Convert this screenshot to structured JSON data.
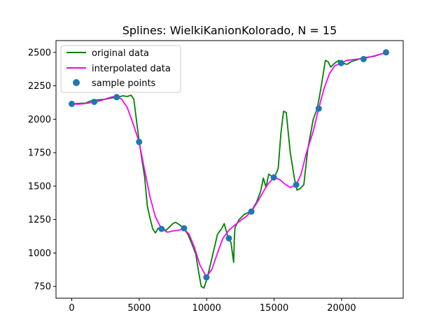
{
  "chart_data": {
    "type": "line",
    "title": "Splines: WielkiKanionKolorado, N = 15",
    "xlabel": "",
    "ylabel": "",
    "xlim": [
      -1170,
      24570
    ],
    "ylim": [
      662,
      2588
    ],
    "grid": false,
    "legend_position": "top-left",
    "x_ticks": [
      0,
      5000,
      10000,
      15000,
      20000
    ],
    "y_ticks": [
      750,
      1000,
      1250,
      1500,
      1750,
      2000,
      2250,
      2500
    ],
    "series": [
      {
        "name": "original data",
        "kind": "line",
        "color": "#008000",
        "x": [
          0,
          500,
          1000,
          1500,
          2000,
          2500,
          3000,
          3400,
          3800,
          4100,
          4400,
          4600,
          4800,
          5000,
          5200,
          5400,
          5600,
          5800,
          6000,
          6200,
          6400,
          6700,
          7000,
          7300,
          7500,
          7700,
          8000,
          8300,
          8600,
          8900,
          9200,
          9400,
          9600,
          9800,
          10000,
          10200,
          10500,
          10800,
          11100,
          11300,
          11600,
          11800,
          12000,
          12050,
          12100,
          12400,
          12800,
          13300,
          13700,
          14000,
          14200,
          14400,
          14600,
          15000,
          15300,
          15500,
          15700,
          15900,
          16200,
          16500,
          16700,
          16900,
          17200,
          17500,
          17900,
          18200,
          18500,
          18800,
          19000,
          19200,
          19500,
          19800,
          20100,
          20400,
          20700,
          21000,
          21300,
          21600,
          22000,
          22400,
          22700,
          23000,
          23300
        ],
        "y": [
          2115,
          2118,
          2120,
          2140,
          2145,
          2150,
          2160,
          2165,
          2175,
          2170,
          2180,
          2150,
          1990,
          1830,
          1700,
          1570,
          1350,
          1260,
          1180,
          1150,
          1185,
          1175,
          1170,
          1200,
          1220,
          1230,
          1210,
          1185,
          1140,
          1070,
          990,
          860,
          750,
          738,
          800,
          880,
          1010,
          1140,
          1180,
          1220,
          1110,
          1080,
          930,
          1100,
          1190,
          1250,
          1290,
          1310,
          1380,
          1460,
          1560,
          1490,
          1590,
          1560,
          1630,
          1890,
          2060,
          2050,
          1750,
          1560,
          1470,
          1480,
          1510,
          1780,
          2000,
          2080,
          2250,
          2440,
          2430,
          2390,
          2420,
          2440,
          2420,
          2410,
          2430,
          2440,
          2450,
          2460,
          2465,
          2470,
          2480,
          2490,
          2500
        ]
      },
      {
        "name": "interpolated data",
        "kind": "line",
        "color": "#ff00ff",
        "x": [
          0,
          400,
          800,
          1200,
          1664,
          2100,
          2600,
          3000,
          3328,
          3700,
          4100,
          4500,
          4992,
          5400,
          5800,
          6200,
          6656,
          7100,
          7500,
          7900,
          8320,
          8700,
          9100,
          9500,
          9984,
          10400,
          10800,
          11200,
          11648,
          12100,
          12600,
          12900,
          13312,
          13700,
          14100,
          14500,
          14976,
          15400,
          15800,
          16200,
          16640,
          17000,
          17400,
          17900,
          18304,
          18700,
          19100,
          19500,
          19968,
          20400,
          20800,
          21200,
          21632,
          22100,
          22600,
          23000,
          23296
        ],
        "y": [
          2115,
          2112,
          2115,
          2120,
          2130,
          2138,
          2155,
          2167,
          2170,
          2150,
          2090,
          1980,
          1830,
          1620,
          1420,
          1270,
          1180,
          1155,
          1165,
          1170,
          1180,
          1140,
          1040,
          910,
          820,
          880,
          1000,
          1110,
          1170,
          1210,
          1250,
          1270,
          1310,
          1370,
          1440,
          1510,
          1565,
          1550,
          1515,
          1490,
          1510,
          1590,
          1750,
          1910,
          2080,
          2230,
          2340,
          2400,
          2420,
          2440,
          2445,
          2450,
          2455,
          2465,
          2478,
          2490,
          2495
        ]
      },
      {
        "name": "sample points",
        "kind": "scatter",
        "color": "#1f77b4",
        "x": [
          0,
          1664,
          3328,
          4992,
          6656,
          8320,
          9984,
          11648,
          13312,
          14976,
          16640,
          18304,
          19968,
          21632,
          23296
        ],
        "y": [
          2115,
          2130,
          2165,
          1830,
          1180,
          1185,
          818,
          1110,
          1310,
          1565,
          1510,
          2080,
          2420,
          2450,
          2500
        ]
      }
    ]
  }
}
